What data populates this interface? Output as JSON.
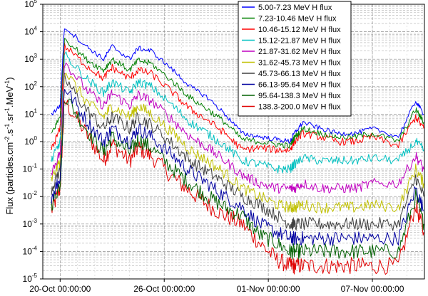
{
  "chart_data": {
    "type": "line",
    "title": "",
    "ylabel": "Flux (particles.cm-2.s-1.sr-1.MeV-1)",
    "ylabel_parts": [
      "Flux (particles.cm",
      "-2",
      ".s",
      "-1",
      ".sr",
      "-1",
      ".MeV",
      "-1",
      ")"
    ],
    "xlabel": "",
    "yscale": "log",
    "ylim": [
      1e-05,
      100000.0
    ],
    "y_ticks": [
      {
        "value": 100000.0,
        "base": "10",
        "exp": "5"
      },
      {
        "value": 10000.0,
        "base": "10",
        "exp": "4"
      },
      {
        "value": 1000.0,
        "base": "10",
        "exp": "3"
      },
      {
        "value": 100.0,
        "base": "10",
        "exp": "2"
      },
      {
        "value": 10.0,
        "base": "10",
        "exp": "1"
      },
      {
        "value": 1.0,
        "base": "10",
        "exp": "0"
      },
      {
        "value": 0.1,
        "base": "10",
        "exp": "-1"
      },
      {
        "value": 0.01,
        "base": "10",
        "exp": "-2"
      },
      {
        "value": 0.001,
        "base": "10",
        "exp": "-3"
      },
      {
        "value": 0.0001,
        "base": "10",
        "exp": "-4"
      },
      {
        "value": 1e-05,
        "base": "10",
        "exp": "-5"
      }
    ],
    "xlim": [
      "2003-10-19T00:00",
      "2003-11-10T00:00"
    ],
    "x_ticks": [
      {
        "value": "2003-10-20T00:00",
        "label": "20-Oct 00:00:00"
      },
      {
        "value": "2003-10-26T00:00",
        "label": "26-Oct 00:00:00"
      },
      {
        "value": "2003-11-01T00:00",
        "label": "01-Nov 00:00:00"
      },
      {
        "value": "2003-11-07T00:00",
        "label": "07-Nov 00:00:00"
      }
    ],
    "grid": true,
    "legend_position": "top-right",
    "series": [
      {
        "name": "5.00-7.23 MeV H flux",
        "color": "#0000ff",
        "values": [
          10.0,
          20,
          15000.0,
          3000.0,
          1000.0,
          3000.0,
          1000.0,
          2500.0,
          2000.0,
          400.0,
          100.0,
          40,
          10,
          2,
          1.5,
          1.2,
          1,
          2,
          5,
          3,
          2,
          2,
          3,
          1.5,
          30,
          10
        ]
      },
      {
        "name": "7.23-10.46 MeV H flux",
        "color": "#008000",
        "values": [
          2,
          8,
          6000.0,
          1000.0,
          400.0,
          1000.0,
          400.0,
          900.0,
          700.0,
          150.0,
          40,
          15,
          5,
          1.2,
          1,
          0.8,
          0.7,
          1.4,
          3,
          2,
          1.5,
          1.5,
          2,
          1,
          15,
          5
        ]
      },
      {
        "name": "10.46-15.12 MeV H flux",
        "color": "#ff0000",
        "values": [
          0.5,
          3,
          3000.0,
          600.0,
          200.0,
          500.0,
          200.0,
          400.0,
          300.0,
          60,
          15,
          6,
          2,
          0.5,
          0.6,
          0.5,
          0.5,
          1,
          2,
          1.5,
          1,
          1,
          1.5,
          0.7,
          8,
          3
        ]
      },
      {
        "name": "15.12-21.87 MeV H flux",
        "color": "#00c0c0",
        "values": [
          0.2,
          1,
          1500.0,
          200.0,
          60,
          150.0,
          60,
          150.0,
          100.0,
          20,
          5,
          2,
          0.7,
          0.2,
          0.15,
          0.1,
          0.1,
          0.15,
          0.25,
          0.2,
          0.2,
          0.2,
          0.25,
          0.2,
          1,
          0.5
        ]
      },
      {
        "name": "21.87-31.62 MeV H flux",
        "color": "#c000c0",
        "values": [
          0.08,
          0.4,
          800.0,
          80,
          20,
          60,
          20,
          50,
          30,
          6,
          1.5,
          0.6,
          0.2,
          0.06,
          0.03,
          0.02,
          0.02,
          0.02,
          0.03,
          0.02,
          0.02,
          0.02,
          0.03,
          0.03,
          0.3,
          0.1
        ]
      },
      {
        "name": "31.62-45.73 MeV H flux",
        "color": "#c0c000",
        "values": [
          0.04,
          0.2,
          400.0,
          30,
          8,
          20,
          8,
          20,
          10,
          2,
          0.5,
          0.2,
          0.07,
          0.02,
          0.01,
          0.005,
          0.004,
          0.004,
          0.005,
          0.004,
          0.004,
          0.004,
          0.005,
          0.004,
          0.1,
          0.03
        ]
      },
      {
        "name": "45.73-66.13 MeV H flux",
        "color": "#404040",
        "values": [
          0.02,
          0.1,
          200.0,
          15,
          3,
          8,
          3,
          8,
          4,
          0.8,
          0.2,
          0.08,
          0.03,
          0.01,
          0.005,
          0.002,
          0.001,
          0.001,
          0.001,
          0.001,
          0.001,
          0.001,
          0.001,
          0.001,
          0.05,
          0.01
        ]
      },
      {
        "name": "66.13-95.64 MeV H flux",
        "color": "#0000a0",
        "values": [
          0.01,
          0.05,
          100.0,
          6,
          1,
          3,
          1,
          3,
          1.5,
          0.3,
          0.08,
          0.03,
          0.01,
          0.004,
          0.001,
          0.0005,
          0.0003,
          0.0003,
          0.0003,
          0.0003,
          0.0003,
          0.0003,
          0.0003,
          0.0003,
          0.02,
          0.003
        ]
      },
      {
        "name": "95.64-138.3 MeV H flux",
        "color": "#006000",
        "values": [
          0.005,
          0.03,
          50,
          3,
          0.4,
          1.5,
          0.4,
          1.2,
          0.6,
          0.1,
          0.03,
          0.01,
          0.004,
          0.002,
          0.0004,
          0.0002,
          0.0001,
          0.0001,
          0.0001,
          0.0001,
          0.0001,
          0.0001,
          0.0001,
          0.0001,
          0.01,
          0.001
        ]
      },
      {
        "name": "138.3-200.0 MeV H flux",
        "color": "#e00000",
        "values": [
          0.003,
          0.02,
          30,
          2,
          0.2,
          0.8,
          0.2,
          0.6,
          0.3,
          0.05,
          0.015,
          0.005,
          0.002,
          0.001,
          0.0002,
          5e-05,
          3e-05,
          3e-05,
          3e-05,
          3e-05,
          3e-05,
          3e-05,
          3e-05,
          3e-05,
          0.005,
          0.0005
        ]
      }
    ],
    "x": [
      "2003-10-19T12:00",
      "2003-10-20T00:00",
      "2003-10-20T06:00",
      "2003-10-21T12:00",
      "2003-10-22T12:00",
      "2003-10-23T00:00",
      "2003-10-24T00:00",
      "2003-10-24T12:00",
      "2003-10-25T06:00",
      "2003-10-26T12:00",
      "2003-10-27T12:00",
      "2003-10-28T12:00",
      "2003-10-29T12:00",
      "2003-10-30T12:00",
      "2003-10-31T12:00",
      "2003-11-01T12:00",
      "2003-11-02T06:00",
      "2003-11-02T12:00",
      "2003-11-03T00:00",
      "2003-11-04T00:00",
      "2003-11-05T00:00",
      "2003-11-06T00:00",
      "2003-11-07T00:00",
      "2003-11-08T12:00",
      "2003-11-09T12:00",
      "2003-11-09T23:00"
    ]
  }
}
